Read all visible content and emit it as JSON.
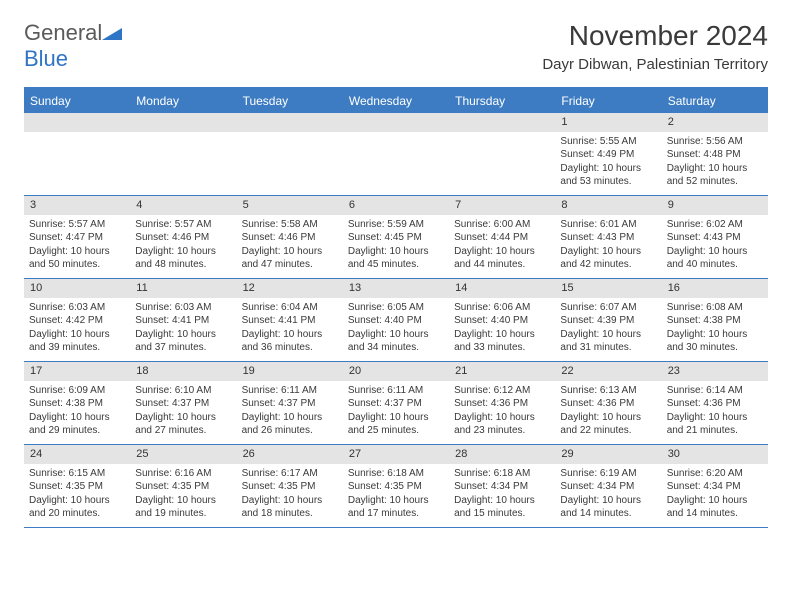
{
  "logo": {
    "general": "General",
    "blue": "Blue"
  },
  "title": "November 2024",
  "location": "Dayr Dibwan, Palestinian Territory",
  "colors": {
    "header_blue": "#3d7cc2",
    "logo_blue": "#2e75c5",
    "logo_gray": "#5a5a5a",
    "day_num_bg": "#e4e4e4",
    "text": "#3a3a3a"
  },
  "weekdays": [
    "Sunday",
    "Monday",
    "Tuesday",
    "Wednesday",
    "Thursday",
    "Friday",
    "Saturday"
  ],
  "weeks": [
    [
      {
        "num": "",
        "sunrise": "",
        "sunset": "",
        "daylight": ""
      },
      {
        "num": "",
        "sunrise": "",
        "sunset": "",
        "daylight": ""
      },
      {
        "num": "",
        "sunrise": "",
        "sunset": "",
        "daylight": ""
      },
      {
        "num": "",
        "sunrise": "",
        "sunset": "",
        "daylight": ""
      },
      {
        "num": "",
        "sunrise": "",
        "sunset": "",
        "daylight": ""
      },
      {
        "num": "1",
        "sunrise": "Sunrise: 5:55 AM",
        "sunset": "Sunset: 4:49 PM",
        "daylight": "Daylight: 10 hours and 53 minutes."
      },
      {
        "num": "2",
        "sunrise": "Sunrise: 5:56 AM",
        "sunset": "Sunset: 4:48 PM",
        "daylight": "Daylight: 10 hours and 52 minutes."
      }
    ],
    [
      {
        "num": "3",
        "sunrise": "Sunrise: 5:57 AM",
        "sunset": "Sunset: 4:47 PM",
        "daylight": "Daylight: 10 hours and 50 minutes."
      },
      {
        "num": "4",
        "sunrise": "Sunrise: 5:57 AM",
        "sunset": "Sunset: 4:46 PM",
        "daylight": "Daylight: 10 hours and 48 minutes."
      },
      {
        "num": "5",
        "sunrise": "Sunrise: 5:58 AM",
        "sunset": "Sunset: 4:46 PM",
        "daylight": "Daylight: 10 hours and 47 minutes."
      },
      {
        "num": "6",
        "sunrise": "Sunrise: 5:59 AM",
        "sunset": "Sunset: 4:45 PM",
        "daylight": "Daylight: 10 hours and 45 minutes."
      },
      {
        "num": "7",
        "sunrise": "Sunrise: 6:00 AM",
        "sunset": "Sunset: 4:44 PM",
        "daylight": "Daylight: 10 hours and 44 minutes."
      },
      {
        "num": "8",
        "sunrise": "Sunrise: 6:01 AM",
        "sunset": "Sunset: 4:43 PM",
        "daylight": "Daylight: 10 hours and 42 minutes."
      },
      {
        "num": "9",
        "sunrise": "Sunrise: 6:02 AM",
        "sunset": "Sunset: 4:43 PM",
        "daylight": "Daylight: 10 hours and 40 minutes."
      }
    ],
    [
      {
        "num": "10",
        "sunrise": "Sunrise: 6:03 AM",
        "sunset": "Sunset: 4:42 PM",
        "daylight": "Daylight: 10 hours and 39 minutes."
      },
      {
        "num": "11",
        "sunrise": "Sunrise: 6:03 AM",
        "sunset": "Sunset: 4:41 PM",
        "daylight": "Daylight: 10 hours and 37 minutes."
      },
      {
        "num": "12",
        "sunrise": "Sunrise: 6:04 AM",
        "sunset": "Sunset: 4:41 PM",
        "daylight": "Daylight: 10 hours and 36 minutes."
      },
      {
        "num": "13",
        "sunrise": "Sunrise: 6:05 AM",
        "sunset": "Sunset: 4:40 PM",
        "daylight": "Daylight: 10 hours and 34 minutes."
      },
      {
        "num": "14",
        "sunrise": "Sunrise: 6:06 AM",
        "sunset": "Sunset: 4:40 PM",
        "daylight": "Daylight: 10 hours and 33 minutes."
      },
      {
        "num": "15",
        "sunrise": "Sunrise: 6:07 AM",
        "sunset": "Sunset: 4:39 PM",
        "daylight": "Daylight: 10 hours and 31 minutes."
      },
      {
        "num": "16",
        "sunrise": "Sunrise: 6:08 AM",
        "sunset": "Sunset: 4:38 PM",
        "daylight": "Daylight: 10 hours and 30 minutes."
      }
    ],
    [
      {
        "num": "17",
        "sunrise": "Sunrise: 6:09 AM",
        "sunset": "Sunset: 4:38 PM",
        "daylight": "Daylight: 10 hours and 29 minutes."
      },
      {
        "num": "18",
        "sunrise": "Sunrise: 6:10 AM",
        "sunset": "Sunset: 4:37 PM",
        "daylight": "Daylight: 10 hours and 27 minutes."
      },
      {
        "num": "19",
        "sunrise": "Sunrise: 6:11 AM",
        "sunset": "Sunset: 4:37 PM",
        "daylight": "Daylight: 10 hours and 26 minutes."
      },
      {
        "num": "20",
        "sunrise": "Sunrise: 6:11 AM",
        "sunset": "Sunset: 4:37 PM",
        "daylight": "Daylight: 10 hours and 25 minutes."
      },
      {
        "num": "21",
        "sunrise": "Sunrise: 6:12 AM",
        "sunset": "Sunset: 4:36 PM",
        "daylight": "Daylight: 10 hours and 23 minutes."
      },
      {
        "num": "22",
        "sunrise": "Sunrise: 6:13 AM",
        "sunset": "Sunset: 4:36 PM",
        "daylight": "Daylight: 10 hours and 22 minutes."
      },
      {
        "num": "23",
        "sunrise": "Sunrise: 6:14 AM",
        "sunset": "Sunset: 4:36 PM",
        "daylight": "Daylight: 10 hours and 21 minutes."
      }
    ],
    [
      {
        "num": "24",
        "sunrise": "Sunrise: 6:15 AM",
        "sunset": "Sunset: 4:35 PM",
        "daylight": "Daylight: 10 hours and 20 minutes."
      },
      {
        "num": "25",
        "sunrise": "Sunrise: 6:16 AM",
        "sunset": "Sunset: 4:35 PM",
        "daylight": "Daylight: 10 hours and 19 minutes."
      },
      {
        "num": "26",
        "sunrise": "Sunrise: 6:17 AM",
        "sunset": "Sunset: 4:35 PM",
        "daylight": "Daylight: 10 hours and 18 minutes."
      },
      {
        "num": "27",
        "sunrise": "Sunrise: 6:18 AM",
        "sunset": "Sunset: 4:35 PM",
        "daylight": "Daylight: 10 hours and 17 minutes."
      },
      {
        "num": "28",
        "sunrise": "Sunrise: 6:18 AM",
        "sunset": "Sunset: 4:34 PM",
        "daylight": "Daylight: 10 hours and 15 minutes."
      },
      {
        "num": "29",
        "sunrise": "Sunrise: 6:19 AM",
        "sunset": "Sunset: 4:34 PM",
        "daylight": "Daylight: 10 hours and 14 minutes."
      },
      {
        "num": "30",
        "sunrise": "Sunrise: 6:20 AM",
        "sunset": "Sunset: 4:34 PM",
        "daylight": "Daylight: 10 hours and 14 minutes."
      }
    ]
  ]
}
